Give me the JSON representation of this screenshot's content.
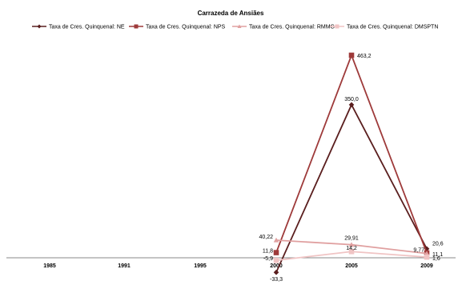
{
  "chart_data": {
    "type": "line",
    "title": "Carrazeda de Ansiães",
    "xlabel": "",
    "ylabel": "",
    "categories": [
      "1985",
      "1991",
      "1995",
      "2000",
      "2005",
      "2009"
    ],
    "ylim": [
      -40,
      470
    ],
    "grid": false,
    "legend_position": "top",
    "series": [
      {
        "name": "Taxa de Cres. Quinquenal: NE",
        "color": "#5a1e1e",
        "marker": "diamond",
        "values": [
          null,
          null,
          null,
          -33.3,
          350.0,
          20.6
        ],
        "labels": [
          null,
          null,
          null,
          "-33,3",
          "350,0",
          "20,6"
        ]
      },
      {
        "name": "Taxa de Cres. Quinquenal: NPS",
        "color": "#9e3a3a",
        "marker": "square",
        "values": [
          null,
          null,
          null,
          11.8,
          463.2,
          11.1
        ],
        "labels": [
          null,
          null,
          null,
          "11,8",
          "463,2",
          "11,1"
        ]
      },
      {
        "name": "Taxa de Cres. Quinquenal: RMMG",
        "color": "#e0a0a0",
        "marker": "triangle",
        "values": [
          null,
          null,
          null,
          40.22,
          29.91,
          9.77
        ],
        "labels": [
          null,
          null,
          null,
          "40,22",
          "29,91",
          "9,77"
        ]
      },
      {
        "name": "Taxa de Cres. Quinquenal: DMSPTN",
        "color": "#f0c4c4",
        "marker": "square",
        "values": [
          null,
          null,
          null,
          -5.9,
          14.2,
          1.6
        ],
        "labels": [
          null,
          null,
          null,
          "-5,9",
          "14,2",
          "1,6"
        ]
      }
    ]
  }
}
